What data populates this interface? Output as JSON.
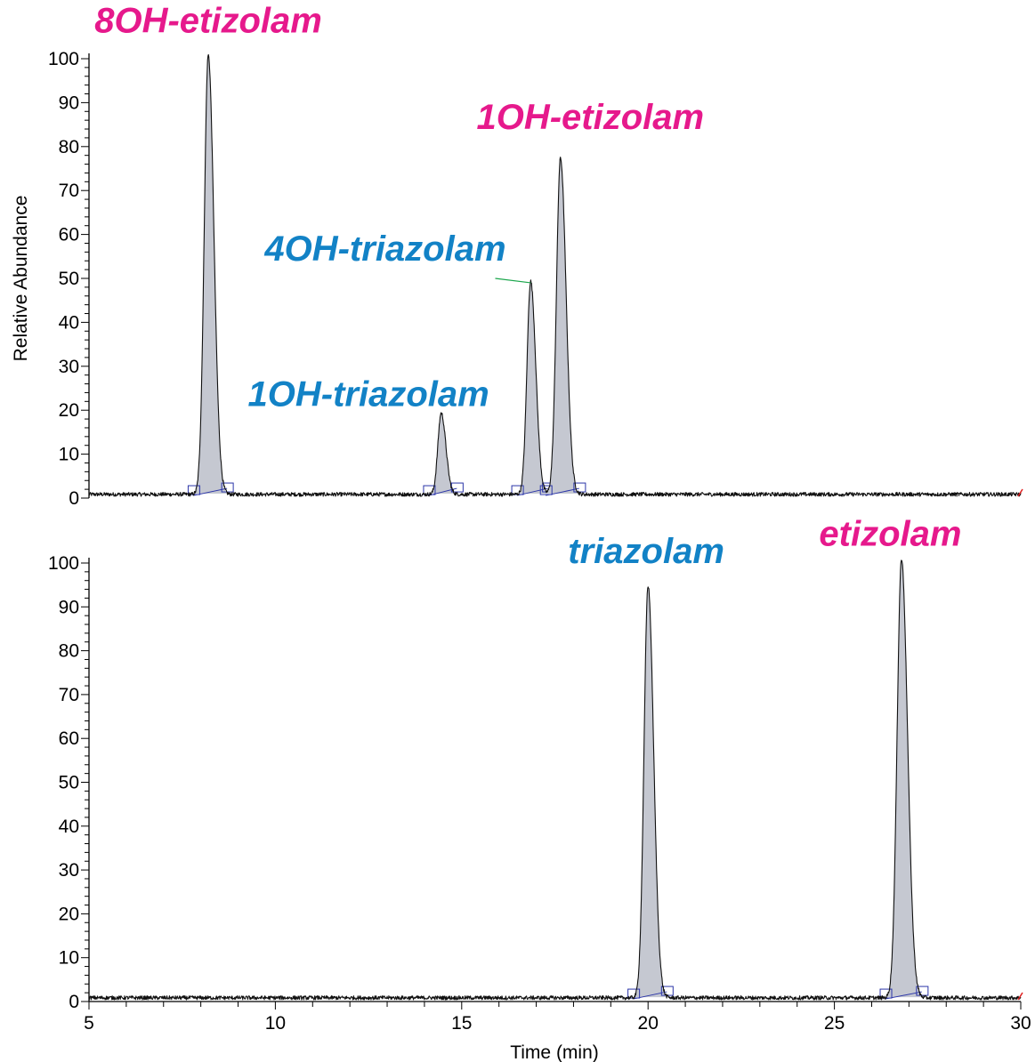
{
  "chart_data": {
    "type": "line",
    "title": "",
    "xlabel": "Time (min)",
    "ylabel": "Relative Abundance",
    "xlim": [
      5,
      30
    ],
    "ylim": [
      0,
      100
    ],
    "x_ticks": [
      "5",
      "10",
      "15",
      "20",
      "25",
      "30"
    ],
    "y_ticks": [
      "0",
      "10",
      "20",
      "30",
      "40",
      "50",
      "60",
      "70",
      "80",
      "90",
      "100"
    ],
    "grid": false,
    "colors": {
      "trace": "#111111",
      "peak_fill": "#c5c8d1",
      "etizolam_family": "#e6198c",
      "triazolam_family": "#1282c6",
      "integration_marker": "#2b35a8",
      "label_leader": "#1aa64b"
    },
    "panels": [
      {
        "peaks": [
          {
            "label": "8OH-etizolam",
            "rt": 8.2,
            "height": 100,
            "width": 0.12,
            "family": "etizolam",
            "label_x": 8.2,
            "label_y": 106
          },
          {
            "label": "1OH-triazolam",
            "rt": 14.45,
            "height": 18.5,
            "width": 0.1,
            "family": "triazolam",
            "label_x": 12.5,
            "label_y": 21
          },
          {
            "label": "4OH-triazolam",
            "rt": 16.85,
            "height": 48.5,
            "width": 0.11,
            "family": "triazolam",
            "label_x": 12.95,
            "label_y": 54
          },
          {
            "label": "1OH-etizolam",
            "rt": 17.65,
            "height": 76.5,
            "width": 0.12,
            "family": "etizolam",
            "label_x": 18.45,
            "label_y": 84
          }
        ]
      },
      {
        "peaks": [
          {
            "label": "triazolam",
            "rt": 20.0,
            "height": 94,
            "width": 0.12,
            "family": "triazolam",
            "label_x": 19.95,
            "label_y": 100
          },
          {
            "label": "etizolam",
            "rt": 26.8,
            "height": 100,
            "width": 0.13,
            "family": "etizolam",
            "label_x": 26.5,
            "label_y": 104
          }
        ]
      }
    ]
  }
}
